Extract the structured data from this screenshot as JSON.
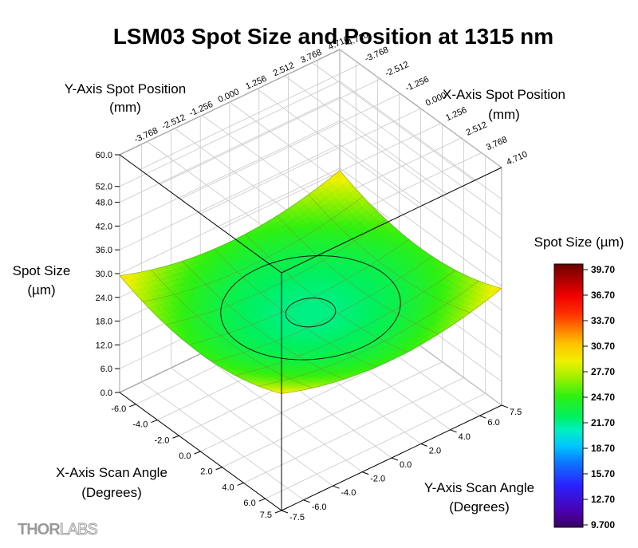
{
  "chart_data": {
    "type": "surface",
    "title": "LSM03 Spot Size and Position at 1315 nm",
    "z_label": [
      "Spot Size",
      "(µm)"
    ],
    "y_position_label": [
      "Y-Axis Spot Position",
      "(mm)"
    ],
    "x_position_label": [
      "X-Axis Spot Position",
      "(mm)"
    ],
    "x_angle_label": [
      "X-Axis Scan Angle",
      "(Degrees)"
    ],
    "y_angle_label": [
      "Y-Axis Scan Angle",
      "(Degrees)"
    ],
    "z_ticks": [
      "0.0",
      "6.0",
      "12.0",
      "18.0",
      "24.0",
      "30.0",
      "36.0",
      "42.0",
      "48.0",
      "52.0",
      "60.0"
    ],
    "z_range": [
      0,
      60
    ],
    "x_angle_ticks": [
      "-6.0",
      "-4.0",
      "-2.0",
      "0.0",
      "2.0",
      "4.0",
      "6.0",
      "7.5"
    ],
    "y_angle_ticks": [
      "-7.5",
      "-6.0",
      "-4.0",
      "-2.0",
      "0.0",
      "2.0",
      "4.0",
      "6.0",
      "7.5"
    ],
    "y_position_ticks": [
      "-3.768",
      "-2.512",
      "-1.256",
      "0.000",
      "1.256",
      "2.512",
      "3.768",
      "4.710"
    ],
    "x_position_ticks": [
      "-4.710",
      "-3.768",
      "-2.512",
      "-1.256",
      "0.000",
      "1.256",
      "2.512",
      "3.768",
      "4.710"
    ],
    "angle_range": [
      -7.5,
      7.5
    ],
    "surface": {
      "center_value_um": 21.7,
      "edge_midpoint_value_um": 24.7,
      "corner_value_um": 29.5,
      "contour_levels_um": [
        21.8,
        23.0
      ]
    },
    "colorbar": {
      "title": "Spot Size (µm)",
      "ticks": [
        "39.70",
        "36.70",
        "33.70",
        "30.70",
        "27.70",
        "24.70",
        "21.70",
        "18.70",
        "15.70",
        "12.70",
        "9.700"
      ],
      "range": [
        9.7,
        39.7
      ]
    },
    "grid": true
  },
  "logo": {
    "thor": "THOR",
    "labs": "LABS"
  }
}
